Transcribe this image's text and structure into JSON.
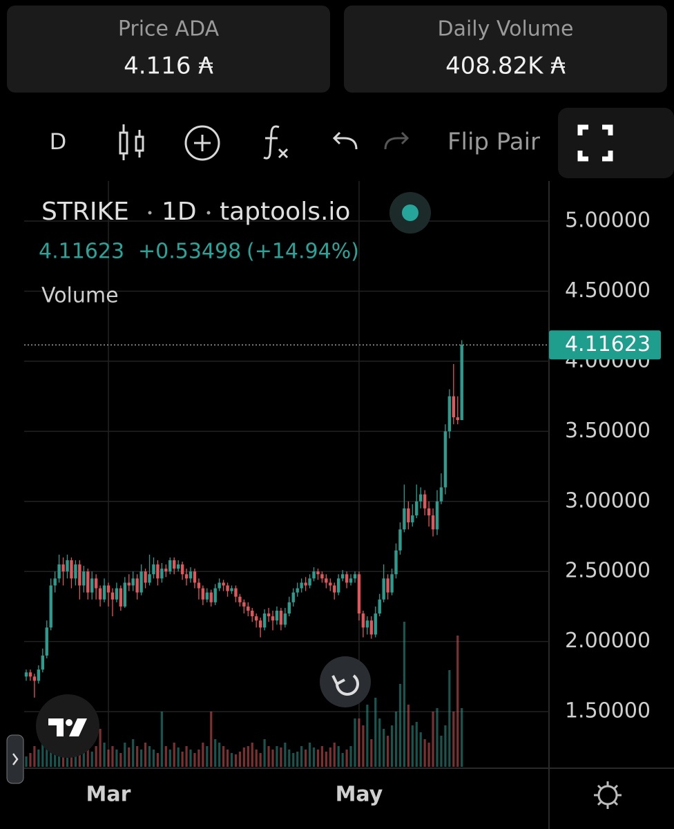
{
  "header": {
    "cards": [
      {
        "label": "Price ADA",
        "value": "4.116 ₳"
      },
      {
        "label": "Daily Volume",
        "value": "408.82K ₳"
      }
    ]
  },
  "toolbar": {
    "interval": "D",
    "flip": "Flip Pair"
  },
  "legend": {
    "symbol": "STRIKE",
    "interval": "1D",
    "source": "taptools.io",
    "last": "4.11623",
    "change": "+0.53498",
    "change_pct": "(+14.94%)",
    "volume": "Volume"
  },
  "chart_data": {
    "type": "candlestick",
    "up_color": "#2a9d8f",
    "down_color": "#e0575b",
    "categories": [
      null,
      null,
      null,
      null,
      null,
      null,
      null,
      null,
      null,
      null,
      null,
      null,
      null,
      null,
      null,
      null,
      null,
      null,
      null,
      null,
      "Mar",
      null,
      null,
      null,
      null,
      null,
      null,
      null,
      null,
      null,
      null,
      null,
      null,
      null,
      null,
      null,
      null,
      null,
      null,
      null,
      null,
      null,
      null,
      null,
      null,
      null,
      null,
      null,
      null,
      null,
      null,
      null,
      null,
      null,
      null,
      null,
      null,
      null,
      null,
      null,
      null,
      null,
      null,
      null,
      null,
      null,
      null,
      null,
      null,
      null,
      null,
      null,
      null,
      null,
      null,
      null,
      null,
      null,
      null,
      null,
      null,
      "May",
      null,
      null,
      null,
      null,
      null,
      null,
      null,
      null,
      null,
      null,
      null,
      null,
      null,
      null,
      null,
      null,
      null,
      null,
      null,
      null,
      null,
      null,
      null,
      null,
      null
    ],
    "open": [
      1.75,
      1.78,
      1.75,
      1.72,
      1.8,
      1.9,
      2.1,
      2.4,
      2.45,
      2.55,
      2.5,
      2.58,
      2.45,
      2.55,
      2.4,
      2.5,
      2.35,
      2.45,
      2.38,
      2.3,
      2.4,
      2.35,
      2.3,
      2.38,
      2.25,
      2.42,
      2.4,
      2.45,
      2.35,
      2.5,
      2.42,
      2.48,
      2.55,
      2.45,
      2.52,
      2.5,
      2.58,
      2.52,
      2.55,
      2.48,
      2.45,
      2.5,
      2.42,
      2.38,
      2.3,
      2.35,
      2.28,
      2.38,
      2.42,
      2.4,
      2.36,
      2.38,
      2.32,
      2.28,
      2.25,
      2.22,
      2.18,
      2.15,
      2.1,
      2.2,
      2.18,
      2.15,
      2.22,
      2.12,
      2.2,
      2.28,
      2.35,
      2.38,
      2.42,
      2.4,
      2.45,
      2.5,
      2.48,
      2.45,
      2.42,
      2.4,
      2.35,
      2.45,
      2.48,
      2.42,
      2.45,
      2.48,
      2.2,
      2.1,
      2.15,
      2.05,
      2.2,
      2.3,
      2.45,
      2.35,
      2.48,
      2.65,
      2.8,
      2.95,
      2.85,
      2.9,
      3.0,
      3.05,
      2.95,
      2.9,
      2.8,
      3.0,
      3.1,
      3.5,
      3.75,
      3.6,
      3.58
    ],
    "high": [
      1.8,
      1.8,
      1.77,
      1.83,
      1.95,
      2.15,
      2.45,
      2.5,
      2.62,
      2.6,
      2.62,
      2.6,
      2.58,
      2.58,
      2.54,
      2.52,
      2.5,
      2.48,
      2.4,
      2.45,
      2.42,
      2.38,
      2.42,
      2.4,
      2.46,
      2.48,
      2.5,
      2.48,
      2.55,
      2.52,
      2.62,
      2.6,
      2.58,
      2.56,
      2.55,
      2.6,
      2.6,
      2.58,
      2.57,
      2.52,
      2.53,
      2.52,
      2.45,
      2.4,
      2.38,
      2.37,
      2.41,
      2.45,
      2.44,
      2.42,
      2.4,
      2.4,
      2.34,
      2.3,
      2.28,
      2.24,
      2.2,
      2.17,
      2.23,
      2.24,
      2.22,
      2.25,
      2.24,
      2.24,
      2.32,
      2.38,
      2.42,
      2.45,
      2.46,
      2.48,
      2.53,
      2.52,
      2.5,
      2.48,
      2.45,
      2.42,
      2.48,
      2.51,
      2.5,
      2.48,
      2.5,
      2.5,
      2.22,
      2.18,
      2.18,
      2.25,
      2.34,
      2.55,
      2.48,
      2.52,
      2.7,
      2.85,
      3.12,
      3.0,
      2.98,
      3.12,
      3.1,
      3.08,
      3.0,
      2.95,
      3.08,
      3.2,
      3.55,
      3.8,
      3.98,
      3.75,
      4.15
    ],
    "low": [
      1.72,
      1.72,
      1.6,
      1.7,
      1.78,
      1.88,
      2.08,
      2.35,
      2.42,
      2.4,
      2.45,
      2.38,
      2.4,
      2.3,
      2.35,
      2.3,
      2.3,
      2.3,
      2.25,
      2.28,
      2.25,
      2.18,
      2.28,
      2.22,
      2.24,
      2.36,
      2.36,
      2.3,
      2.33,
      2.38,
      2.4,
      2.45,
      2.4,
      2.42,
      2.46,
      2.48,
      2.48,
      2.5,
      2.44,
      2.4,
      2.42,
      2.38,
      2.3,
      2.26,
      2.28,
      2.25,
      2.26,
      2.36,
      2.36,
      2.32,
      2.34,
      2.28,
      2.25,
      2.2,
      2.18,
      2.14,
      2.1,
      2.03,
      2.08,
      2.14,
      2.08,
      2.12,
      2.08,
      2.1,
      2.18,
      2.25,
      2.32,
      2.35,
      2.36,
      2.38,
      2.43,
      2.44,
      2.42,
      2.38,
      2.36,
      2.3,
      2.33,
      2.43,
      2.38,
      2.4,
      2.42,
      2.15,
      2.03,
      2.05,
      2.02,
      2.03,
      2.18,
      2.28,
      2.3,
      2.33,
      2.45,
      2.62,
      2.78,
      2.8,
      2.82,
      2.88,
      2.95,
      2.9,
      2.82,
      2.75,
      2.76,
      2.98,
      3.05,
      3.45,
      3.55,
      3.55,
      3.58
    ],
    "close": [
      1.78,
      1.75,
      1.72,
      1.8,
      1.9,
      2.1,
      2.4,
      2.45,
      2.55,
      2.5,
      2.58,
      2.45,
      2.55,
      2.4,
      2.5,
      2.35,
      2.45,
      2.38,
      2.3,
      2.4,
      2.35,
      2.3,
      2.38,
      2.25,
      2.42,
      2.4,
      2.45,
      2.35,
      2.5,
      2.42,
      2.48,
      2.55,
      2.45,
      2.52,
      2.5,
      2.58,
      2.52,
      2.55,
      2.48,
      2.45,
      2.5,
      2.42,
      2.38,
      2.3,
      2.35,
      2.28,
      2.38,
      2.42,
      2.4,
      2.36,
      2.38,
      2.32,
      2.28,
      2.25,
      2.22,
      2.18,
      2.15,
      2.1,
      2.2,
      2.18,
      2.15,
      2.22,
      2.12,
      2.2,
      2.28,
      2.35,
      2.38,
      2.42,
      2.4,
      2.45,
      2.5,
      2.48,
      2.45,
      2.42,
      2.4,
      2.35,
      2.45,
      2.48,
      2.42,
      2.45,
      2.48,
      2.2,
      2.1,
      2.15,
      2.05,
      2.2,
      2.3,
      2.45,
      2.35,
      2.48,
      2.65,
      2.8,
      2.95,
      2.85,
      2.9,
      3.0,
      3.05,
      2.95,
      2.9,
      2.8,
      3.0,
      3.1,
      3.5,
      3.75,
      3.6,
      3.58,
      4.11623
    ],
    "volume": [
      15,
      20,
      30,
      25,
      50,
      70,
      60,
      45,
      35,
      30,
      40,
      30,
      25,
      35,
      40,
      28,
      22,
      30,
      55,
      35,
      25,
      30,
      25,
      20,
      35,
      28,
      40,
      30,
      25,
      35,
      30,
      25,
      20,
      80,
      30,
      25,
      35,
      28,
      22,
      30,
      25,
      20,
      25,
      35,
      30,
      80,
      40,
      35,
      30,
      25,
      20,
      18,
      22,
      28,
      30,
      35,
      25,
      20,
      40,
      30,
      25,
      30,
      28,
      35,
      25,
      20,
      22,
      30,
      25,
      35,
      28,
      25,
      30,
      22,
      28,
      35,
      30,
      20,
      25,
      30,
      70,
      70,
      60,
      90,
      40,
      100,
      70,
      55,
      45,
      60,
      80,
      120,
      210,
      90,
      60,
      65,
      50,
      40,
      35,
      80,
      85,
      45,
      60,
      140,
      80,
      190,
      85
    ],
    "vlim": [
      0,
      230
    ],
    "ylim": [
      1.106,
      5.286
    ],
    "yticks": [
      {
        "value": 1.5,
        "label": "1.50000"
      },
      {
        "value": 2,
        "label": "2.00000"
      },
      {
        "value": 2.5,
        "label": "2.50000"
      },
      {
        "value": 3,
        "label": "3.00000"
      },
      {
        "value": 3.5,
        "label": "3.50000"
      },
      {
        "value": 4,
        "label": "4.00000"
      },
      {
        "value": 4.5,
        "label": "4.50000"
      },
      {
        "value": 5,
        "label": "5.00000"
      }
    ],
    "grid": true
  }
}
